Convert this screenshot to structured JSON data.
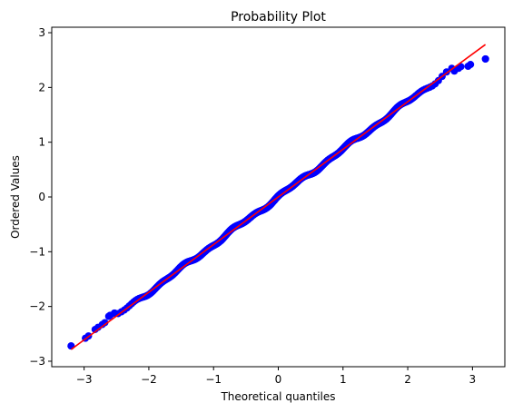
{
  "chart_data": {
    "type": "scatter",
    "title": "Probability Plot",
    "xlabel": "Theoretical quantiles",
    "ylabel": "Ordered Values",
    "xlim": [
      -3.5,
      3.5
    ],
    "ylim": [
      -3.1,
      3.1
    ],
    "x_ticks": [
      -3,
      -2,
      -1,
      0,
      1,
      2,
      3
    ],
    "y_ticks": [
      -3,
      -2,
      -1,
      0,
      1,
      2,
      3
    ],
    "x_tick_labels": [
      "−3",
      "−2",
      "−1",
      "0",
      "1",
      "2",
      "3"
    ],
    "y_tick_labels": [
      "−3",
      "−2",
      "−1",
      "0",
      "1",
      "2",
      "3"
    ],
    "grid": false,
    "marker_color": "#0000ff",
    "fit_line_color": "#ff0000",
    "fit_line": {
      "slope": 0.87,
      "intercept": 0.0,
      "x_range": [
        -3.2,
        3.2
      ]
    },
    "notable_points": [
      {
        "x": -3.2,
        "y": -2.72
      },
      {
        "x": -2.98,
        "y": -2.58
      },
      {
        "x": -2.83,
        "y": -2.42
      },
      {
        "x": -2.72,
        "y": -2.33
      },
      {
        "x": -2.62,
        "y": -2.18
      },
      {
        "x": -2.53,
        "y": -2.12
      },
      {
        "x": 2.72,
        "y": 2.3
      },
      {
        "x": 2.82,
        "y": 2.38
      },
      {
        "x": 2.97,
        "y": 2.42
      },
      {
        "x": 3.2,
        "y": 2.52
      }
    ],
    "sample_size": 1000
  }
}
